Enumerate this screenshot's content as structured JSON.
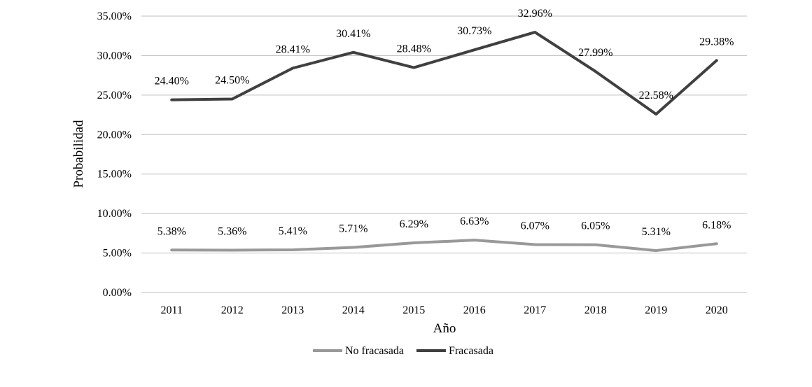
{
  "chart_data": {
    "type": "line",
    "title": "",
    "xlabel": "Año",
    "ylabel": "Probabilidad",
    "ylim": [
      0,
      35
    ],
    "yticks": [
      "0.00%",
      "5.00%",
      "10.00%",
      "15.00%",
      "20.00%",
      "25.00%",
      "30.00%",
      "35.00%"
    ],
    "grid": true,
    "legend_position": "bottom",
    "categories": [
      "2011",
      "2012",
      "2013",
      "2014",
      "2015",
      "2016",
      "2017",
      "2018",
      "2019",
      "2020"
    ],
    "series": [
      {
        "name": "No fracasada",
        "color": "#999999",
        "values": [
          5.38,
          5.36,
          5.41,
          5.71,
          6.29,
          6.63,
          6.07,
          6.05,
          5.31,
          6.18
        ],
        "labels": [
          "5.38%",
          "5.36%",
          "5.41%",
          "5.71%",
          "6.29%",
          "6.63%",
          "6.07%",
          "6.05%",
          "5.31%",
          "6.18%"
        ]
      },
      {
        "name": "Fracasada",
        "color": "#404040",
        "values": [
          24.4,
          24.5,
          28.41,
          30.41,
          28.48,
          30.73,
          32.96,
          27.99,
          22.58,
          29.38
        ],
        "labels": [
          "24.40%",
          "24.50%",
          "28.41%",
          "30.41%",
          "28.48%",
          "30.73%",
          "32.96%",
          "27.99%",
          "22.58%",
          "29.38%"
        ]
      }
    ]
  }
}
